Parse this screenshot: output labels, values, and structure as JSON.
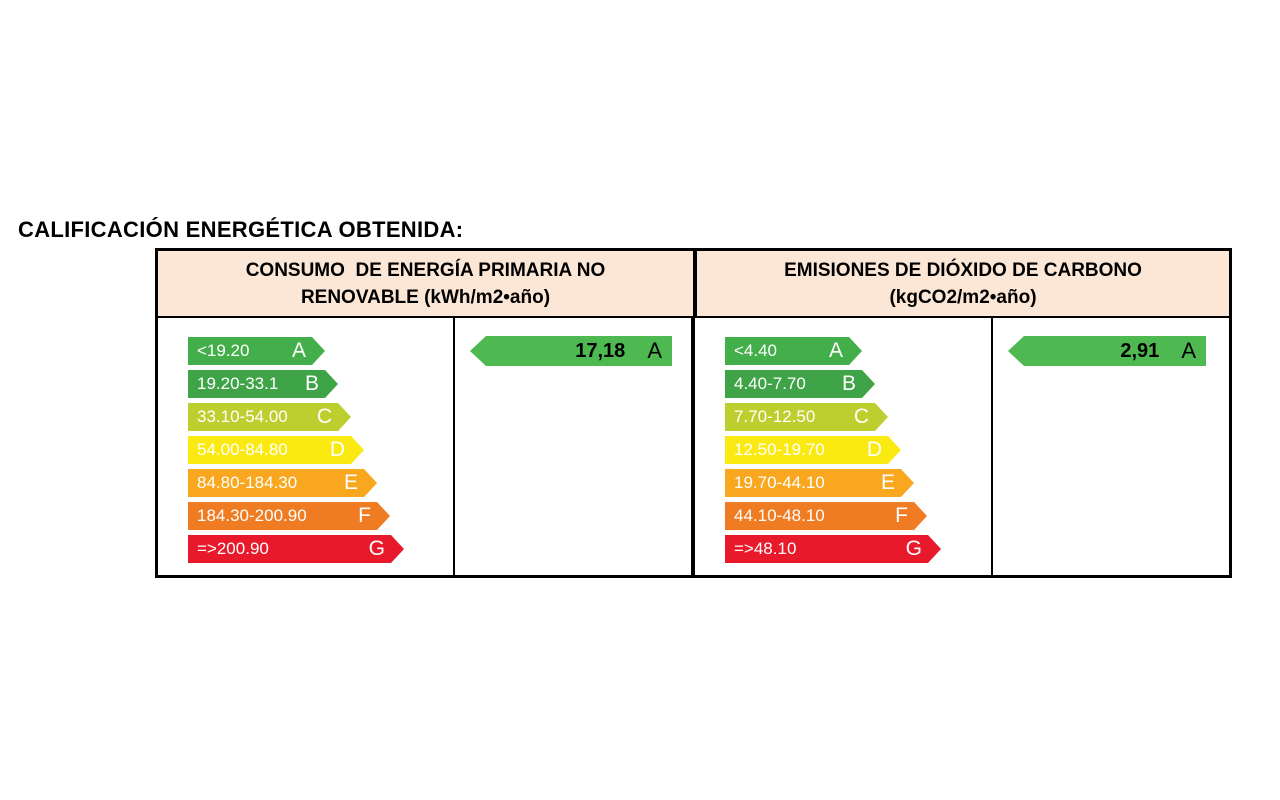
{
  "title": "CALIFICACIÓN ENERGÉTICA OBTENIDA:",
  "colors": {
    "header_bg": "#FCE6D5",
    "border": "#000000",
    "result_arrow": "#4EB950",
    "band_a": "#43AF4A",
    "band_b": "#3FA447",
    "band_c": "#BDCF2F",
    "band_d": "#FBEA12",
    "band_e": "#F8A71E",
    "band_f": "#EF7C22",
    "band_g": "#E9192C"
  },
  "chart_data": [
    {
      "type": "bar",
      "title": "CONSUMO  DE ENERGÍA PRIMARIA NO\nRENOVABLE (kWh/m2•año)",
      "unit": "kWh/m2•año",
      "categories": [
        "A",
        "B",
        "C",
        "D",
        "E",
        "F",
        "G"
      ],
      "band_ranges": [
        "<19.20",
        "19.20-33.1",
        "33.10-54.00",
        "54.00-84.80",
        "84.80-184.30",
        "184.30-200.90",
        "=>200.90"
      ],
      "band_colors": [
        "#43AF4A",
        "#3FA447",
        "#BDCF2F",
        "#FBEA12",
        "#F8A71E",
        "#EF7C22",
        "#E9192C"
      ],
      "result": {
        "value": "17,18",
        "numeric": 17.18,
        "letter": "A"
      }
    },
    {
      "type": "bar",
      "title": "EMISIONES DE DIÓXIDO DE CARBONO\n(kgCO2/m2•año)",
      "unit": "kgCO2/m2•año",
      "categories": [
        "A",
        "B",
        "C",
        "D",
        "E",
        "F",
        "G"
      ],
      "band_ranges": [
        "<4.40",
        "4.40-7.70",
        "7.70-12.50",
        "12.50-19.70",
        "19.70-44.10",
        "44.10-48.10",
        "=>48.10"
      ],
      "band_colors": [
        "#43AF4A",
        "#3FA447",
        "#BDCF2F",
        "#FBEA12",
        "#F8A71E",
        "#EF7C22",
        "#E9192C"
      ],
      "result": {
        "value": "2,91",
        "numeric": 2.91,
        "letter": "A"
      }
    }
  ]
}
